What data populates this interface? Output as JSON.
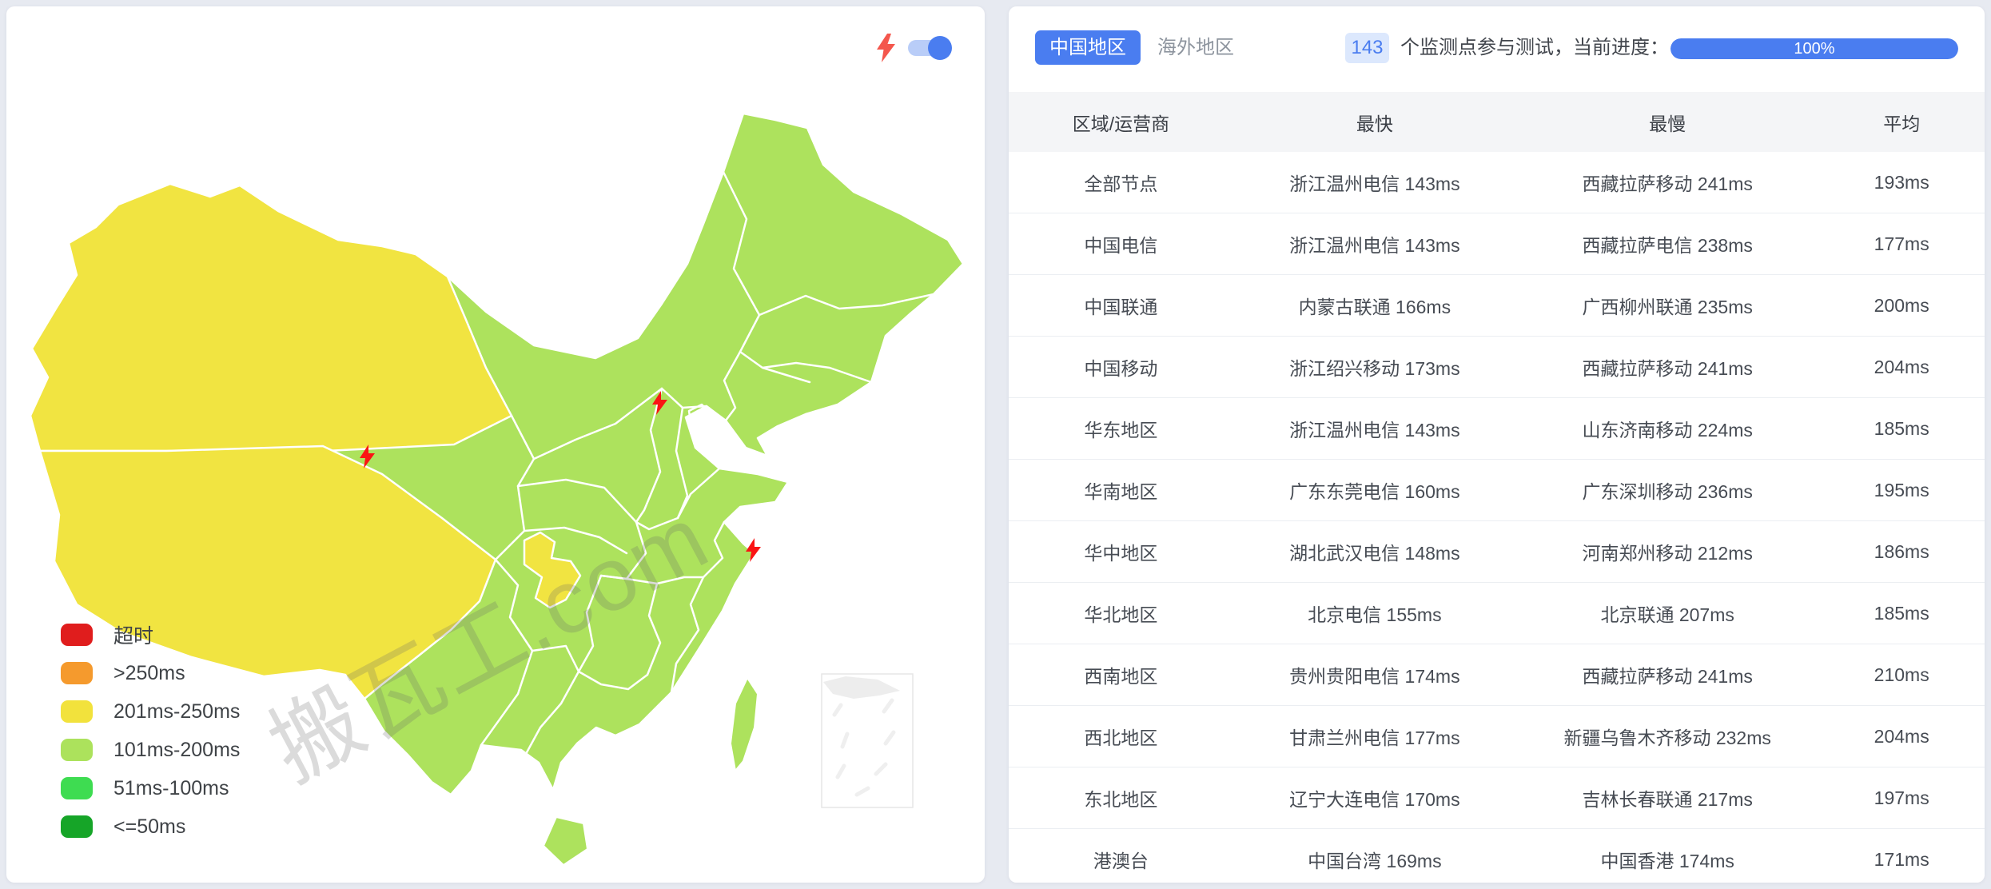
{
  "map_panel": {
    "watermark": "搬瓦工.com",
    "legend": [
      {
        "label": "超时",
        "color": "#e01d1d"
      },
      {
        "label": ">250ms",
        "color": "#f59a2d"
      },
      {
        "label": "201ms-250ms",
        "color": "#f2e23c"
      },
      {
        "label": "101ms-200ms",
        "color": "#ace25c"
      },
      {
        "label": "51ms-100ms",
        "color": "#3edc51"
      },
      {
        "label": "<=50ms",
        "color": "#16a528"
      }
    ],
    "region_colors": {
      "land": "#ade25d",
      "warn": "#f1e441",
      "border": "#ffffff",
      "inset": "#ededed"
    },
    "bolt_marker_color": "#fa1414",
    "toggle": {
      "state": "on",
      "bolt_color": "#f4574d",
      "track_color": "#b9cdf8",
      "knob_color": "#4a7df0"
    }
  },
  "results_panel": {
    "tabs": [
      {
        "label": "中国地区",
        "active": true
      },
      {
        "label": "海外地区",
        "active": false
      }
    ],
    "monitor_count": "143",
    "progress_label": "个监测点参与测试，当前进度：",
    "progress_value": "100%",
    "accent_color": "#4a7df0",
    "table": {
      "headers": [
        "区域/运营商",
        "最快",
        "最慢",
        "平均"
      ],
      "rows": [
        {
          "region": "全部节点",
          "fastest": "浙江温州电信 143ms",
          "slowest": "西藏拉萨移动 241ms",
          "avg": "193ms"
        },
        {
          "region": "中国电信",
          "fastest": "浙江温州电信 143ms",
          "slowest": "西藏拉萨电信 238ms",
          "avg": "177ms"
        },
        {
          "region": "中国联通",
          "fastest": "内蒙古联通 166ms",
          "slowest": "广西柳州联通 235ms",
          "avg": "200ms"
        },
        {
          "region": "中国移动",
          "fastest": "浙江绍兴移动 173ms",
          "slowest": "西藏拉萨移动 241ms",
          "avg": "204ms"
        },
        {
          "region": "华东地区",
          "fastest": "浙江温州电信 143ms",
          "slowest": "山东济南移动 224ms",
          "avg": "185ms"
        },
        {
          "region": "华南地区",
          "fastest": "广东东莞电信 160ms",
          "slowest": "广东深圳移动 236ms",
          "avg": "195ms"
        },
        {
          "region": "华中地区",
          "fastest": "湖北武汉电信 148ms",
          "slowest": "河南郑州移动 212ms",
          "avg": "186ms"
        },
        {
          "region": "华北地区",
          "fastest": "北京电信 155ms",
          "slowest": "北京联通 207ms",
          "avg": "185ms"
        },
        {
          "region": "西南地区",
          "fastest": "贵州贵阳电信 174ms",
          "slowest": "西藏拉萨移动 241ms",
          "avg": "210ms"
        },
        {
          "region": "西北地区",
          "fastest": "甘肃兰州电信 177ms",
          "slowest": "新疆乌鲁木齐移动 232ms",
          "avg": "204ms"
        },
        {
          "region": "东北地区",
          "fastest": "辽宁大连电信 170ms",
          "slowest": "吉林长春联通 217ms",
          "avg": "197ms"
        },
        {
          "region": "港澳台",
          "fastest": "中国台湾 169ms",
          "slowest": "中国香港 174ms",
          "avg": "171ms"
        }
      ]
    }
  }
}
